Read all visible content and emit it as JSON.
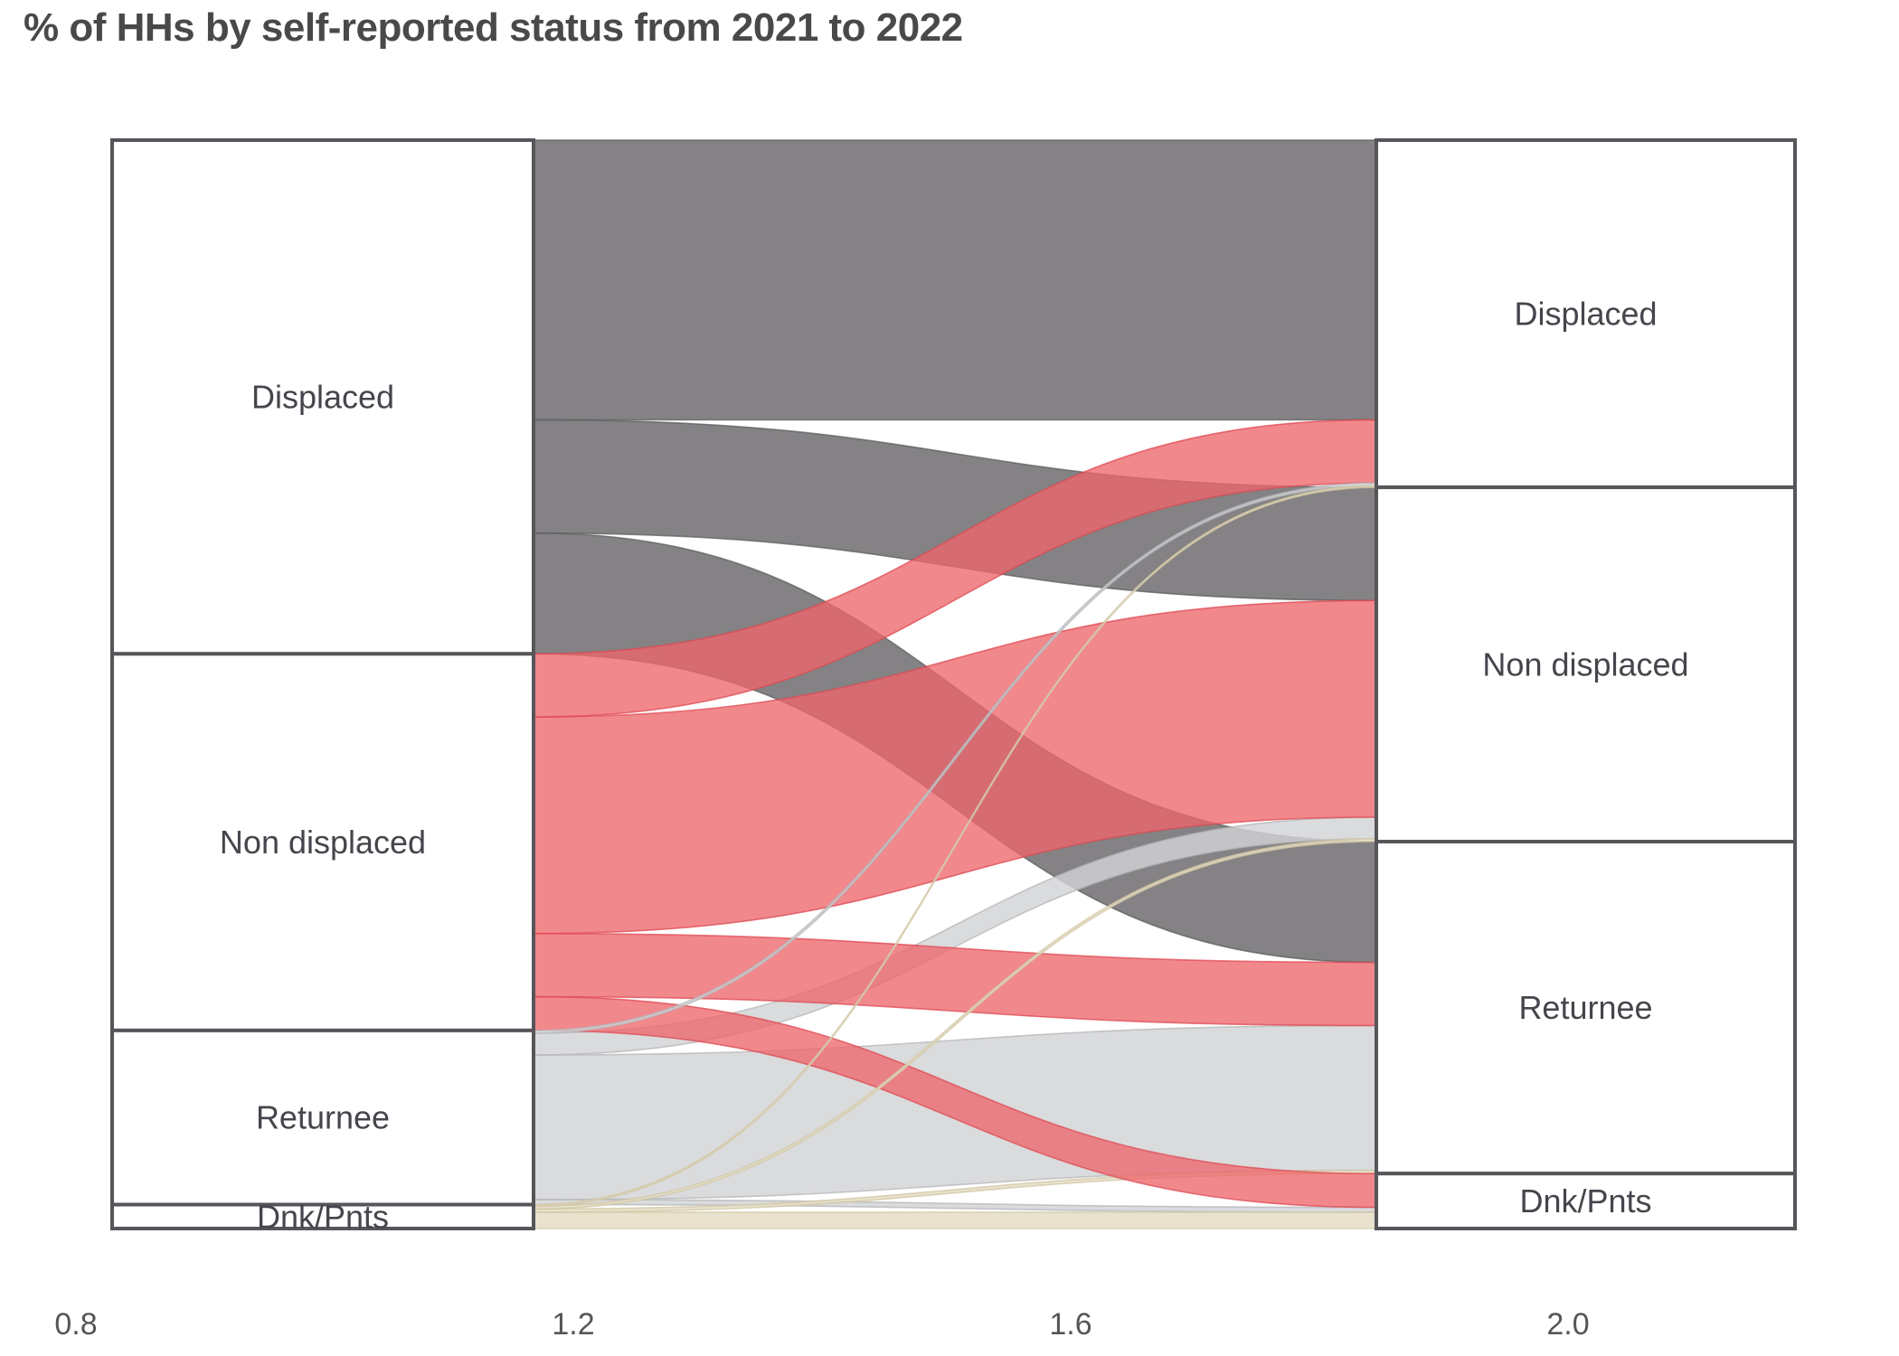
{
  "chart_data": {
    "type": "alluvial",
    "title": "% of HHs by self-reported status from 2021 to 2022",
    "x_axis": {
      "ticks": [
        "0.8",
        "1.2",
        "1.6",
        "2.0"
      ],
      "values": [
        0.8,
        1.2,
        1.6,
        2.0
      ]
    },
    "legend_position": "none",
    "grid": false,
    "columns": [
      {
        "id": "left",
        "nodes": [
          {
            "label": "Displaced",
            "pct": 47.2
          },
          {
            "label": "Non displaced",
            "pct": 34.6
          },
          {
            "label": "Returnee",
            "pct": 16.0
          },
          {
            "label": "Dnk/Pnts",
            "pct": 2.2
          }
        ]
      },
      {
        "id": "right",
        "nodes": [
          {
            "label": "Displaced",
            "pct": 31.9
          },
          {
            "label": "Non displaced",
            "pct": 32.6
          },
          {
            "label": "Returnee",
            "pct": 30.5
          },
          {
            "label": "Dnk/Pnts",
            "pct": 5.1
          }
        ]
      }
    ],
    "links": [
      {
        "from": "Displaced",
        "to": "Displaced",
        "pct": 25.7,
        "z": 1
      },
      {
        "from": "Displaced",
        "to": "Non displaced",
        "pct": 10.4,
        "z": 2
      },
      {
        "from": "Displaced",
        "to": "Returnee",
        "pct": 11.1,
        "z": 3
      },
      {
        "from": "Returnee",
        "to": "Returnee",
        "pct": 13.3,
        "z": 4
      },
      {
        "from": "Returnee",
        "to": "Non displaced",
        "pct": 2.0,
        "z": 5
      },
      {
        "from": "Returnee",
        "to": "Dnk/Pnts",
        "pct": 0.45,
        "z": 6
      },
      {
        "from": "Dnk/Pnts",
        "to": "Dnk/Pnts",
        "pct": 1.5,
        "z": 7
      },
      {
        "from": "Dnk/Pnts",
        "to": "Returnee",
        "pct": 0.3,
        "z": 8
      },
      {
        "from": "Non displaced",
        "to": "Non displaced",
        "pct": 19.9,
        "z": 9
      },
      {
        "from": "Non displaced",
        "to": "Displaced",
        "pct": 5.8,
        "z": 10
      },
      {
        "from": "Non displaced",
        "to": "Returnee",
        "pct": 5.8,
        "z": 11
      },
      {
        "from": "Non displaced",
        "to": "Dnk/Pnts",
        "pct": 3.1,
        "z": 12
      },
      {
        "from": "Returnee",
        "to": "Displaced",
        "pct": 0.25,
        "z": 13
      },
      {
        "from": "Dnk/Pnts",
        "to": "Non displaced",
        "pct": 0.25,
        "z": 14
      },
      {
        "from": "Dnk/Pnts",
        "to": "Displaced",
        "pct": 0.15,
        "z": 15
      }
    ],
    "colors": {
      "Displaced": "#79777a",
      "Non displaced": "#ed676b",
      "Returnee": "#d2d3d6",
      "Dnk/Pnts": "#e4ddc6"
    },
    "fill_opacity": {
      "Displaced": 0.92,
      "Non displaced": 0.78,
      "Returnee": 0.82,
      "Dnk/Pnts": 0.85
    },
    "edge_colors": {
      "Displaced": "#5e5c5f",
      "Non displaced": "#de4a52",
      "Returnee": "#b4b5b8",
      "Dnk/Pnts": "#d2c7a4"
    }
  }
}
